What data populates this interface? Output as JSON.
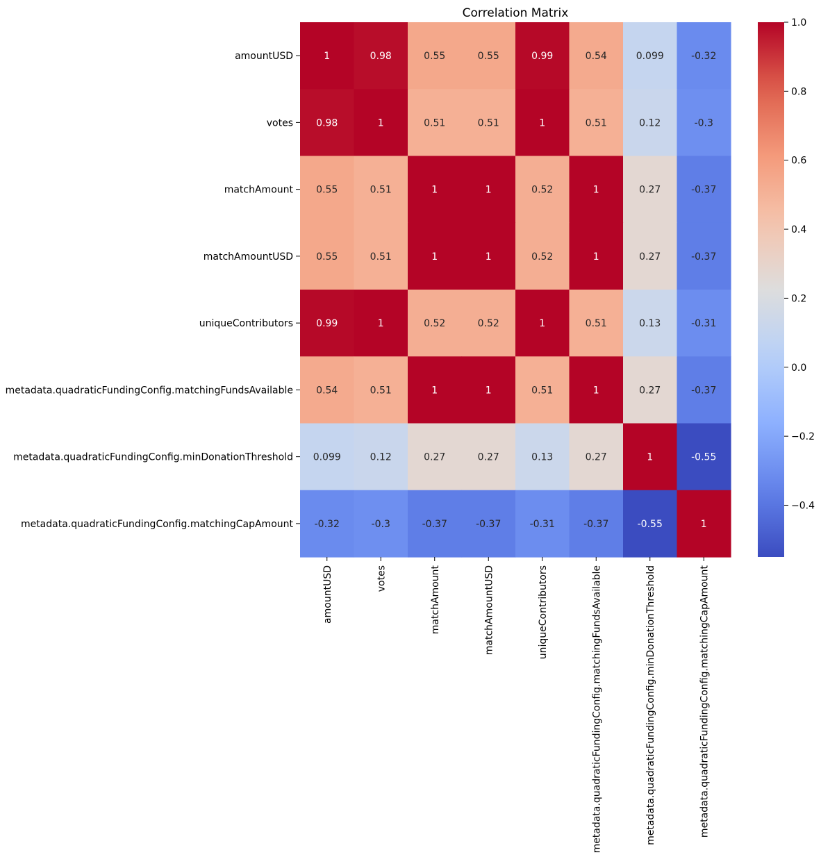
{
  "chart_data": {
    "type": "heatmap",
    "title": "Correlation Matrix",
    "xlabel": "",
    "ylabel": "",
    "colormap": "coolwarm",
    "vmin": -0.55,
    "vmax": 1.0,
    "variables": [
      "amountUSD",
      "votes",
      "matchAmount",
      "matchAmountUSD",
      "uniqueContributors",
      "metadata.quadraticFundingConfig.matchingFundsAvailable",
      "metadata.quadraticFundingConfig.minDonationThreshold",
      "metadata.quadraticFundingConfig.matchingCapAmount"
    ],
    "values": [
      [
        1,
        0.98,
        0.55,
        0.55,
        0.99,
        0.54,
        0.099,
        -0.32
      ],
      [
        0.98,
        1,
        0.51,
        0.51,
        1,
        0.51,
        0.12,
        -0.3
      ],
      [
        0.55,
        0.51,
        1,
        1,
        0.52,
        1,
        0.27,
        -0.37
      ],
      [
        0.55,
        0.51,
        1,
        1,
        0.52,
        1,
        0.27,
        -0.37
      ],
      [
        0.99,
        1,
        0.52,
        0.52,
        1,
        0.51,
        0.13,
        -0.31
      ],
      [
        0.54,
        0.51,
        1,
        1,
        0.51,
        1,
        0.27,
        -0.37
      ],
      [
        0.099,
        0.12,
        0.27,
        0.27,
        0.13,
        0.27,
        1,
        -0.55
      ],
      [
        -0.32,
        -0.3,
        -0.37,
        -0.37,
        -0.31,
        -0.37,
        -0.55,
        1
      ]
    ],
    "annotations": [
      [
        "1",
        "0.98",
        "0.55",
        "0.55",
        "0.99",
        "0.54",
        "0.099",
        "-0.32"
      ],
      [
        "0.98",
        "1",
        "0.51",
        "0.51",
        "1",
        "0.51",
        "0.12",
        "-0.3"
      ],
      [
        "0.55",
        "0.51",
        "1",
        "1",
        "0.52",
        "1",
        "0.27",
        "-0.37"
      ],
      [
        "0.55",
        "0.51",
        "1",
        "1",
        "0.52",
        "1",
        "0.27",
        "-0.37"
      ],
      [
        "0.99",
        "1",
        "0.52",
        "0.52",
        "1",
        "0.51",
        "0.13",
        "-0.31"
      ],
      [
        "0.54",
        "0.51",
        "1",
        "1",
        "0.51",
        "1",
        "0.27",
        "-0.37"
      ],
      [
        "0.099",
        "0.12",
        "0.27",
        "0.27",
        "0.13",
        "0.27",
        "1",
        "-0.55"
      ],
      [
        "-0.32",
        "-0.3",
        "-0.37",
        "-0.37",
        "-0.31",
        "-0.37",
        "-0.55",
        "1"
      ]
    ],
    "colorbar": {
      "ticks": [
        1.0,
        0.8,
        0.6,
        0.4,
        0.2,
        0.0,
        -0.2,
        -0.4
      ],
      "tick_labels": [
        "1.0",
        "0.8",
        "0.6",
        "0.4",
        "0.2",
        "0.0",
        "−0.2",
        "−0.4"
      ]
    }
  }
}
